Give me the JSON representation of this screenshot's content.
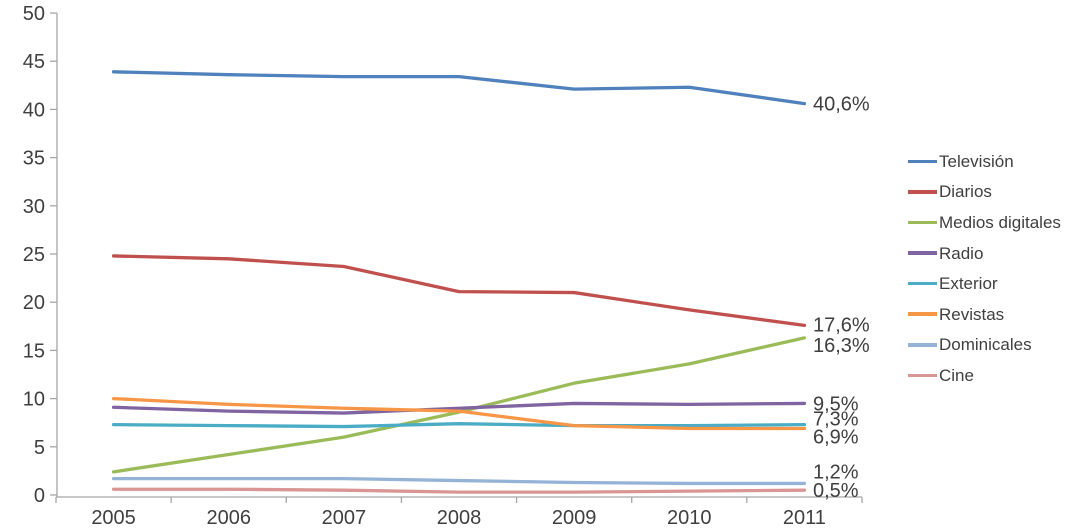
{
  "chart_data": {
    "type": "line",
    "title": "",
    "xlabel": "",
    "ylabel": "",
    "x": [
      "2005",
      "2006",
      "2007",
      "2008",
      "2009",
      "2010",
      "2011"
    ],
    "y_ticks": [
      "0",
      "5",
      "10",
      "15",
      "20",
      "25",
      "30",
      "35",
      "40",
      "45",
      "50"
    ],
    "ylim": [
      0,
      50
    ],
    "grid": false,
    "legend_position": "right",
    "colors": {
      "axis": "#A6A6A6",
      "text": "#3F3F3F",
      "background": "#FFFFFF"
    },
    "series": [
      {
        "name": "Televisión",
        "color": "#4F81BD",
        "values": [
          43.9,
          43.6,
          43.4,
          43.4,
          42.1,
          42.3,
          40.6
        ],
        "end_label": "40,6%",
        "label_dy": 0
      },
      {
        "name": "Diarios",
        "color": "#C0504D",
        "values": [
          24.8,
          24.5,
          23.7,
          21.1,
          21.0,
          19.2,
          17.6
        ],
        "end_label": "17,6%",
        "label_dy": -1
      },
      {
        "name": "Medios digitales",
        "color": "#9BBB59",
        "values": [
          2.4,
          4.2,
          6.0,
          8.6,
          11.6,
          13.6,
          16.3
        ],
        "end_label": "16,3%",
        "label_dy": 7
      },
      {
        "name": "Radio",
        "color": "#8064A2",
        "values": [
          9.1,
          8.7,
          8.5,
          9.0,
          9.5,
          9.4,
          9.5
        ],
        "end_label": "9,5%",
        "label_dy": 0
      },
      {
        "name": "Exterior",
        "color": "#4BACC6",
        "values": [
          7.3,
          7.2,
          7.1,
          7.4,
          7.2,
          7.2,
          7.3
        ],
        "end_label": "7,3%",
        "label_dy": -6
      },
      {
        "name": "Revistas",
        "color": "#F79646",
        "values": [
          10.0,
          9.4,
          9.0,
          8.7,
          7.2,
          6.9,
          6.9
        ],
        "end_label": "6,9%",
        "label_dy": 8
      },
      {
        "name": "Dominicales",
        "color": "#95B3D7",
        "values": [
          1.7,
          1.7,
          1.7,
          1.5,
          1.3,
          1.2,
          1.2
        ],
        "end_label": "1,2%",
        "label_dy": -12
      },
      {
        "name": "Cine",
        "color": "#D99694",
        "values": [
          0.6,
          0.6,
          0.5,
          0.3,
          0.3,
          0.4,
          0.5
        ],
        "end_label": "0,5%",
        "label_dy": 0
      }
    ]
  }
}
